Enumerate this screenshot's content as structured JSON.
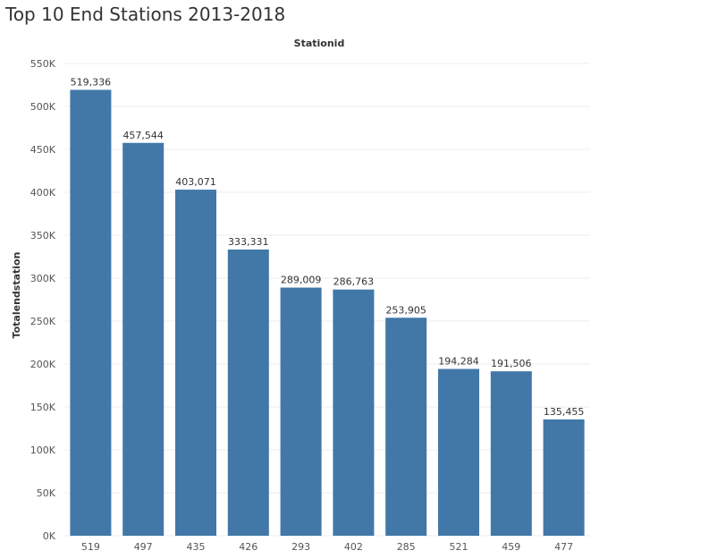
{
  "page": {
    "title": "Top 10 End Stations 2013-2018"
  },
  "chart_data": {
    "type": "bar",
    "title": "Top 10 End Stations 2013-2018",
    "xlabel": "Stationid",
    "ylabel": "Totalendstation",
    "categories": [
      "519",
      "497",
      "435",
      "426",
      "293",
      "402",
      "285",
      "521",
      "459",
      "477"
    ],
    "values": [
      519336,
      457544,
      403071,
      333331,
      289009,
      286763,
      253905,
      194284,
      191506,
      135455
    ],
    "data_labels": [
      "519,336",
      "457,544",
      "403,071",
      "333,331",
      "289,009",
      "286,763",
      "253,905",
      "194,284",
      "191,506",
      "135,455"
    ],
    "ylim": [
      0,
      550000
    ],
    "yticks": [
      0,
      50000,
      100000,
      150000,
      200000,
      250000,
      300000,
      350000,
      400000,
      450000,
      500000,
      550000
    ],
    "ytick_labels": [
      "0K",
      "50K",
      "100K",
      "150K",
      "200K",
      "250K",
      "300K",
      "350K",
      "400K",
      "450K",
      "500K",
      "550K"
    ],
    "grid": true,
    "bar_color": "#4178a8"
  }
}
